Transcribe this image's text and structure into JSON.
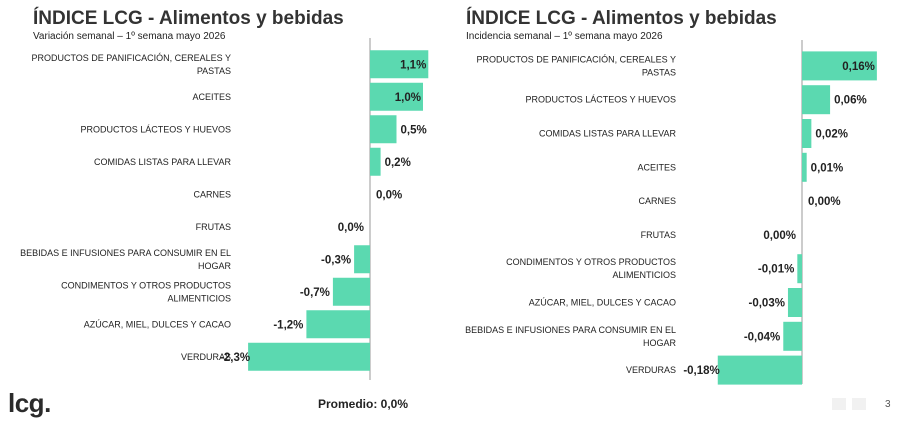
{
  "accent_color": "#5bd9b0",
  "axis_color": "#9a9a9a",
  "footer": {
    "logo": "lcg.",
    "average_label": "Promedio: 0,0%",
    "page_number": "3"
  },
  "chart_data": [
    {
      "type": "bar",
      "orientation": "horizontal",
      "title": "ÍNDICE LCG - Alimentos y bebidas",
      "subtitle": "Variación semanal – 1º semana mayo 2026",
      "categories": [
        "PRODUCTOS DE PANIFICACIÓN, CEREALES Y PASTAS",
        "ACEITES",
        "PRODUCTOS LÁCTEOS Y HUEVOS",
        "COMIDAS LISTAS PARA LLEVAR",
        "CARNES",
        "FRUTAS",
        "BEBIDAS E INFUSIONES PARA CONSUMIR EN EL HOGAR",
        "CONDIMENTOS Y OTROS PRODUCTOS ALIMENTICIOS",
        "AZÚCAR, MIEL, DULCES Y CACAO",
        "VERDURAS"
      ],
      "values": [
        1.1,
        1.0,
        0.5,
        0.2,
        0.0,
        0.0,
        -0.3,
        -0.7,
        -1.2,
        -2.3
      ],
      "value_labels": [
        "1,1%",
        "1,0%",
        "0,5%",
        "0,2%",
        "0,0%",
        "0,0%",
        "-0,3%",
        "-0,7%",
        "-1,2%",
        "-2,3%"
      ],
      "xlim": [
        -2.3,
        1.1
      ]
    },
    {
      "type": "bar",
      "orientation": "horizontal",
      "title": "ÍNDICE LCG - Alimentos y bebidas",
      "subtitle": "Incidencia semanal – 1º semana mayo 2026",
      "categories": [
        "PRODUCTOS DE PANIFICACIÓN, CEREALES Y PASTAS",
        "PRODUCTOS LÁCTEOS Y HUEVOS",
        "COMIDAS LISTAS PARA LLEVAR",
        "ACEITES",
        "CARNES",
        "FRUTAS",
        "CONDIMENTOS Y OTROS PRODUCTOS ALIMENTICIOS",
        "AZÚCAR, MIEL, DULCES Y CACAO",
        "BEBIDAS E INFUSIONES PARA CONSUMIR EN EL HOGAR",
        "VERDURAS"
      ],
      "values": [
        0.16,
        0.06,
        0.02,
        0.01,
        0.0,
        0.0,
        -0.01,
        -0.03,
        -0.04,
        -0.18
      ],
      "value_labels": [
        "0,16%",
        "0,06%",
        "0,02%",
        "0,01%",
        "0,00%",
        "0,00%",
        "-0,01%",
        "-0,03%",
        "-0,04%",
        "-0,18%"
      ],
      "xlim": [
        -0.18,
        0.16
      ]
    }
  ]
}
